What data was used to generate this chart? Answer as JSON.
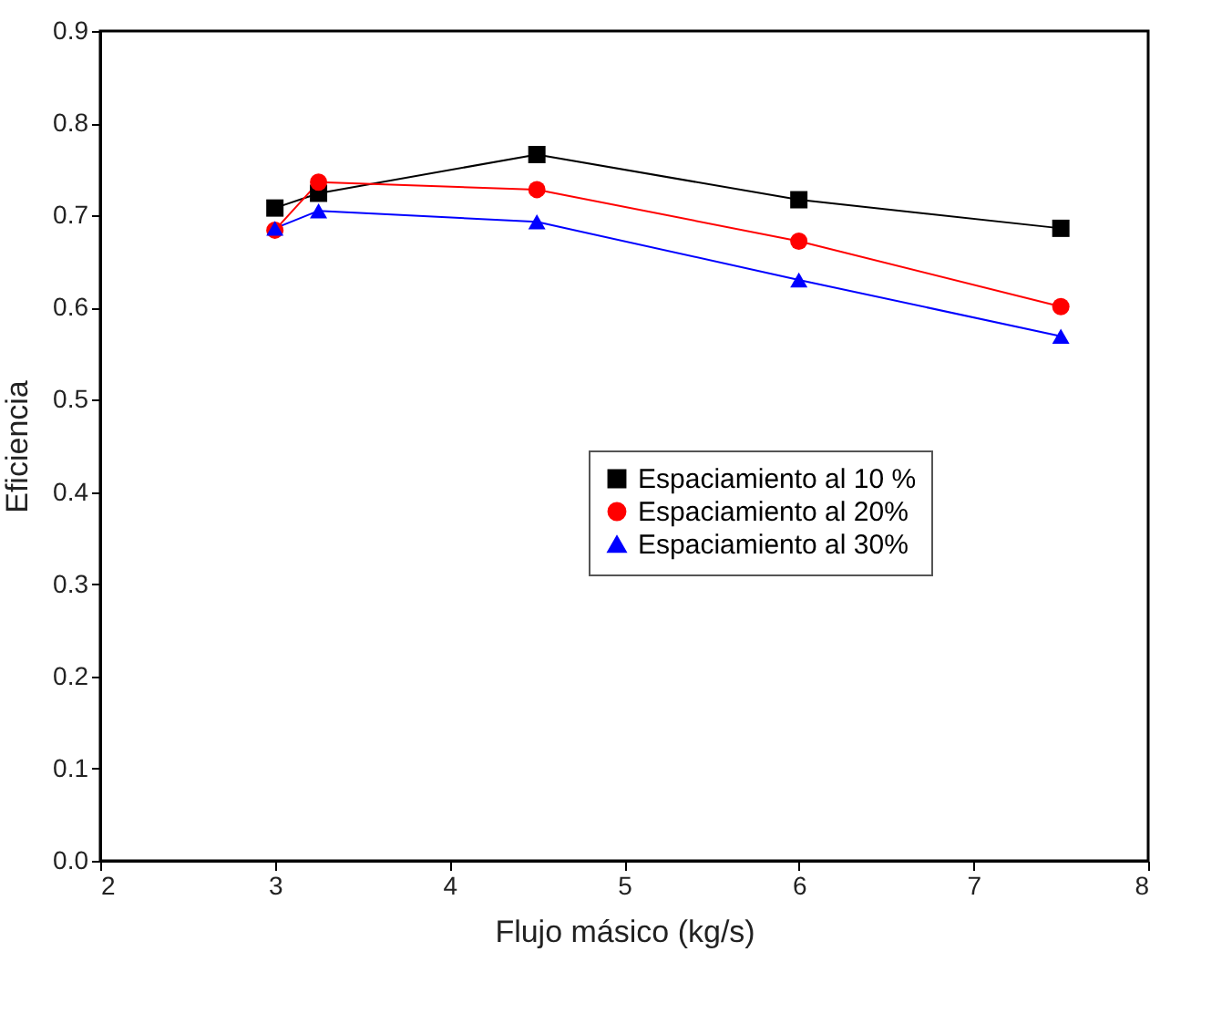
{
  "chart_data": {
    "type": "line",
    "xlabel": "Flujo másico (kg/s)",
    "ylabel": "Eficiencia",
    "x": [
      3,
      3.25,
      4.5,
      6,
      7.5
    ],
    "series": [
      {
        "name": "Espaciamiento al 10 %",
        "color": "#000000",
        "marker": "square",
        "values": [
          0.708,
          0.724,
          0.766,
          0.717,
          0.686
        ]
      },
      {
        "name": "Espaciamiento al 20%",
        "color": "#ff0000",
        "marker": "circle",
        "values": [
          0.684,
          0.736,
          0.728,
          0.672,
          0.601
        ]
      },
      {
        "name": "Espaciamiento al 30%",
        "color": "#0000ff",
        "marker": "triangle",
        "values": [
          0.686,
          0.705,
          0.693,
          0.63,
          0.569
        ]
      }
    ],
    "xlim": [
      2,
      8
    ],
    "xticks": [
      2,
      3,
      4,
      5,
      6,
      7,
      8
    ],
    "ylim": [
      0,
      0.9
    ],
    "yticks": [
      {
        "value": 0,
        "label": "0.0"
      },
      0.1,
      0.2,
      0.3,
      0.4,
      0.5,
      0.6,
      0.7,
      0.8,
      0.9
    ],
    "legend": "right",
    "grid": false,
    "line_style": "solid"
  }
}
